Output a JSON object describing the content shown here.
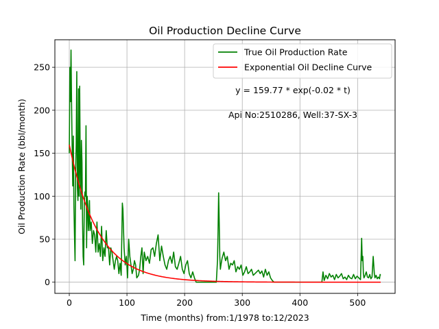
{
  "chart_data": {
    "type": "line",
    "title": "Oil Production Decline Curve",
    "xlabel": "Time (months) from:1/1978 to:12/2023",
    "ylabel": "Oil Production Rate (bbl/month)",
    "xlim": [
      -25,
      565
    ],
    "ylim": [
      -13,
      282
    ],
    "grid": true,
    "legend_position": "top-right",
    "x_ticks": [
      0,
      100,
      200,
      300,
      400,
      500
    ],
    "y_ticks": [
      0,
      50,
      100,
      150,
      200,
      250
    ],
    "annotations": [
      {
        "text": "y = 159.77 * exp(-0.02 * t)",
        "x": 388,
        "y": 222
      },
      {
        "text": "Api No:2510286, Well:37-SX-3",
        "x": 388,
        "y": 193
      }
    ],
    "series": [
      {
        "name": "True Oil Production Rate",
        "color": "#008000",
        "x": [
          0,
          1,
          2,
          3,
          4,
          5,
          6,
          7,
          8,
          9,
          10,
          11,
          12,
          13,
          14,
          15,
          16,
          17,
          18,
          19,
          20,
          21,
          22,
          23,
          24,
          25,
          26,
          27,
          28,
          29,
          30,
          31,
          32,
          33,
          34,
          35,
          36,
          38,
          40,
          42,
          44,
          46,
          48,
          50,
          52,
          54,
          56,
          58,
          60,
          62,
          64,
          66,
          68,
          70,
          72,
          74,
          76,
          78,
          80,
          82,
          84,
          86,
          88,
          90,
          92,
          93,
          95,
          97,
          99,
          101,
          103,
          105,
          107,
          109,
          111,
          113,
          115,
          117,
          120,
          122,
          124,
          126,
          128,
          130,
          133,
          136,
          139,
          142,
          145,
          148,
          151,
          154,
          157,
          160,
          163,
          166,
          169,
          172,
          175,
          178,
          181,
          184,
          187,
          190,
          193,
          196,
          199,
          202,
          205,
          208,
          211,
          214,
          217,
          220,
          225,
          230,
          235,
          240,
          245,
          250,
          255,
          257,
          258,
          259,
          260,
          261,
          262,
          263,
          265,
          268,
          271,
          274,
          277,
          280,
          283,
          286,
          289,
          292,
          295,
          298,
          301,
          304,
          307,
          310,
          313,
          316,
          319,
          322,
          325,
          328,
          331,
          334,
          337,
          340,
          343,
          346,
          349,
          352,
          355,
          360,
          370,
          380,
          390,
          400,
          410,
          420,
          430,
          438,
          440,
          442,
          445,
          448,
          451,
          454,
          457,
          460,
          463,
          466,
          469,
          472,
          475,
          478,
          481,
          484,
          487,
          490,
          493,
          496,
          499,
          502,
          505,
          507,
          508,
          509,
          510,
          511,
          513,
          515,
          517,
          519,
          521,
          523,
          525,
          527,
          528,
          529,
          530,
          532,
          534,
          536,
          538,
          539,
          540
        ],
        "y": [
          150,
          250,
          210,
          270,
          205,
          155,
          112,
          170,
          90,
          55,
          25,
          130,
          160,
          245,
          110,
          95,
          225,
          100,
          228,
          135,
          85,
          165,
          140,
          70,
          30,
          20,
          90,
          105,
          100,
          182,
          40,
          100,
          90,
          60,
          70,
          95,
          60,
          70,
          45,
          60,
          55,
          35,
          70,
          35,
          45,
          30,
          65,
          25,
          40,
          30,
          60,
          40,
          40,
          20,
          40,
          35,
          25,
          15,
          25,
          30,
          25,
          10,
          22,
          8,
          92,
          85,
          40,
          20,
          30,
          5,
          50,
          30,
          20,
          10,
          15,
          25,
          20,
          5,
          8,
          15,
          30,
          40,
          10,
          35,
          25,
          30,
          22,
          38,
          40,
          30,
          45,
          55,
          25,
          42,
          30,
          20,
          15,
          25,
          30,
          22,
          35,
          18,
          15,
          22,
          30,
          15,
          10,
          20,
          25,
          10,
          5,
          12,
          5,
          0,
          0,
          0,
          0,
          0,
          0,
          0,
          0,
          25,
          60,
          104,
          70,
          30,
          15,
          20,
          28,
          35,
          25,
          30,
          15,
          22,
          20,
          25,
          12,
          18,
          15,
          20,
          8,
          12,
          18,
          10,
          12,
          15,
          8,
          10,
          12,
          14,
          10,
          13,
          6,
          15,
          8,
          12,
          5,
          2,
          0,
          0,
          0,
          0,
          0,
          0,
          0,
          0,
          0,
          0,
          12,
          2,
          8,
          4,
          10,
          6,
          8,
          3,
          9,
          5,
          7,
          10,
          4,
          6,
          3,
          8,
          5,
          4,
          9,
          4,
          7,
          5,
          3,
          51,
          25,
          30,
          10,
          5,
          8,
          12,
          6,
          5,
          9,
          4,
          6,
          30,
          20,
          10,
          5,
          8,
          4,
          6,
          4,
          9,
          8
        ]
      },
      {
        "name": "Exponential Oil Decline Curve",
        "color": "#ff0000",
        "equation": {
          "a": 159.77,
          "b": 0.02
        },
        "x_start": 0,
        "x_end": 540
      }
    ]
  }
}
